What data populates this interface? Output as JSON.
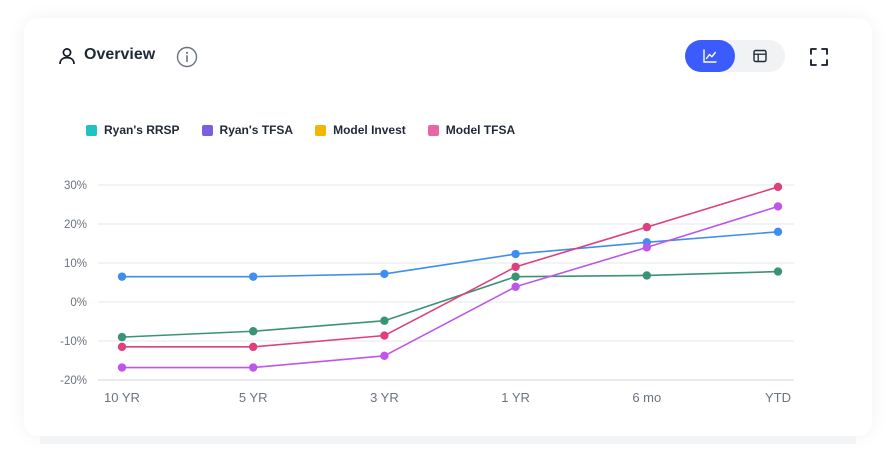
{
  "header": {
    "title": "Overview",
    "user_icon": "user-icon",
    "info_icon": "info-icon",
    "view_toggle": {
      "selected": "chart",
      "chart_icon": "line-chart-icon",
      "table_icon": "table-icon"
    },
    "expand_icon": "expand-icon"
  },
  "colors": {
    "accent": "#3b5bfd"
  },
  "chart_data": {
    "type": "line",
    "categories": [
      "10 YR",
      "5 YR",
      "3 YR",
      "1 YR",
      "6 mo",
      "YTD"
    ],
    "y_ticks": [
      "30%",
      "20%",
      "10%",
      "0%",
      "-10%",
      "-20%"
    ],
    "ylim": [
      -20,
      30
    ],
    "grid": true,
    "legend": [
      {
        "label": "Ryan's RRSP",
        "color": "#1fc2c2"
      },
      {
        "label": "Ryan's TFSA",
        "color": "#7b5fe0"
      },
      {
        "label": "Model Invest",
        "color": "#f2b705"
      },
      {
        "label": "Model TFSA",
        "color": "#e866a6"
      }
    ],
    "series": [
      {
        "color": "#3d8ef0",
        "values": [
          6.5,
          6.5,
          7.2,
          12.3,
          15.3,
          18.0
        ]
      },
      {
        "color": "#3a9474",
        "values": [
          -9.0,
          -7.5,
          -4.8,
          6.5,
          6.8,
          7.8
        ]
      },
      {
        "color": "#df3f7f",
        "values": [
          -11.5,
          -11.5,
          -8.6,
          9.0,
          19.2,
          29.5
        ]
      },
      {
        "color": "#bf55ec",
        "values": [
          -16.8,
          -16.8,
          -13.8,
          3.9,
          14.0,
          24.5
        ]
      }
    ]
  }
}
